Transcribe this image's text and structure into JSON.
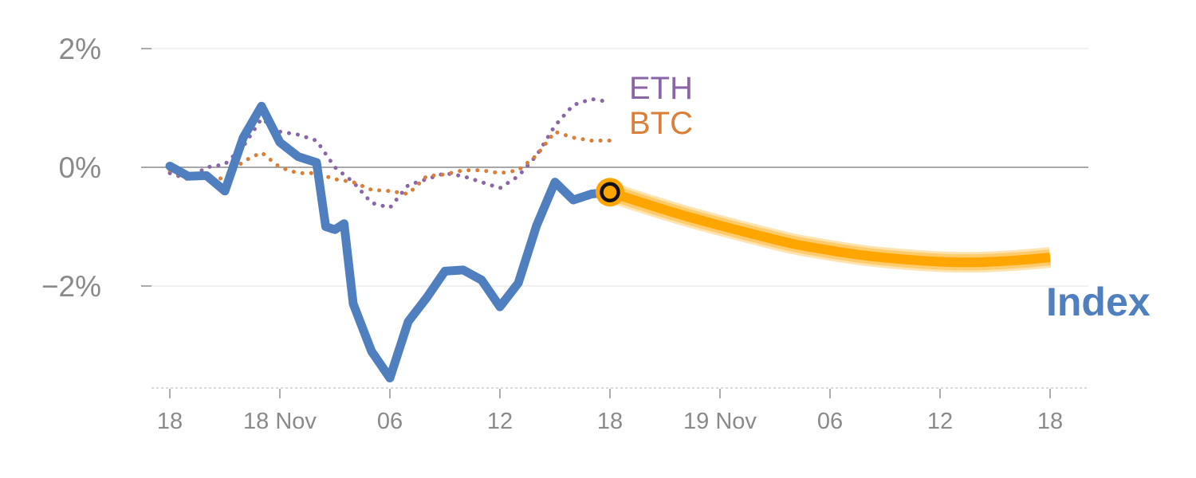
{
  "chart_data": {
    "type": "line",
    "title": "",
    "xlabel": "",
    "ylabel": "",
    "ylim": [
      -3.7,
      2.2
    ],
    "grid": true,
    "y_ticks": [
      {
        "value": 2,
        "label": "2%"
      },
      {
        "value": 0,
        "label": "0%"
      },
      {
        "value": -2,
        "label": "−2%"
      }
    ],
    "x_ticks": [
      {
        "hour": 0,
        "label": "18"
      },
      {
        "hour": 6,
        "label": "18 Nov"
      },
      {
        "hour": 12,
        "label": "06"
      },
      {
        "hour": 18,
        "label": "12"
      },
      {
        "hour": 24,
        "label": "18"
      },
      {
        "hour": 30,
        "label": "19 Nov"
      },
      {
        "hour": 36,
        "label": "06"
      },
      {
        "hour": 42,
        "label": "12"
      },
      {
        "hour": 48,
        "label": "18"
      }
    ],
    "series": [
      {
        "name": "Index",
        "color": "#4f7fbf",
        "style": "solid",
        "x": [
          0,
          1,
          2,
          3,
          4,
          5,
          6,
          7,
          8,
          8.5,
          9,
          9.5,
          10,
          11,
          12,
          13,
          14,
          15,
          16,
          17,
          18,
          19,
          20,
          21,
          22,
          23,
          24
        ],
        "y": [
          0.02,
          -0.15,
          -0.14,
          -0.4,
          0.5,
          1.03,
          0.42,
          0.18,
          0.08,
          -1.0,
          -1.05,
          -0.95,
          -2.3,
          -3.1,
          -3.55,
          -2.6,
          -2.2,
          -1.75,
          -1.73,
          -1.9,
          -2.35,
          -1.95,
          -0.98,
          -0.25,
          -0.55,
          -0.45,
          -0.42
        ]
      },
      {
        "name": "ETH",
        "color": "#8a66a8",
        "style": "dotted",
        "x": [
          0,
          1,
          2,
          3,
          4,
          5,
          6,
          7,
          8,
          9,
          10,
          11,
          12,
          13,
          14,
          15,
          16,
          17,
          18,
          19,
          20,
          21,
          22,
          23,
          24
        ],
        "y": [
          -0.1,
          -0.2,
          0.0,
          0.05,
          0.35,
          0.82,
          0.6,
          0.55,
          0.45,
          0.0,
          -0.25,
          -0.6,
          -0.68,
          -0.3,
          -0.2,
          -0.1,
          -0.15,
          -0.25,
          -0.35,
          -0.15,
          0.2,
          0.7,
          1.05,
          1.15,
          1.1
        ]
      },
      {
        "name": "BTC",
        "color": "#d97f38",
        "style": "dotted",
        "x": [
          0,
          1,
          2,
          3,
          4,
          5,
          6,
          7,
          8,
          9,
          10,
          11,
          12,
          13,
          14,
          15,
          16,
          17,
          18,
          19,
          20,
          21,
          22,
          23,
          24
        ],
        "y": [
          -0.05,
          -0.2,
          -0.15,
          -0.2,
          0.1,
          0.25,
          0.0,
          -0.1,
          -0.1,
          -0.2,
          -0.25,
          -0.38,
          -0.4,
          -0.45,
          -0.15,
          -0.12,
          -0.05,
          -0.05,
          -0.1,
          -0.05,
          0.2,
          0.6,
          0.5,
          0.45,
          0.45
        ]
      }
    ],
    "forecast": {
      "color": "#ffa500",
      "x": [
        24,
        26,
        28,
        30,
        32,
        34,
        36,
        38,
        40,
        42,
        44,
        46,
        48
      ],
      "y": [
        -0.42,
        -0.62,
        -0.81,
        -0.98,
        -1.14,
        -1.29,
        -1.4,
        -1.49,
        -1.55,
        -1.59,
        -1.6,
        -1.57,
        -1.52
      ]
    },
    "marker": {
      "x": 24,
      "y": -0.42,
      "color": "#ffa500"
    },
    "labels": {
      "eth": "ETH",
      "btc": "BTC",
      "index": "Index"
    }
  }
}
